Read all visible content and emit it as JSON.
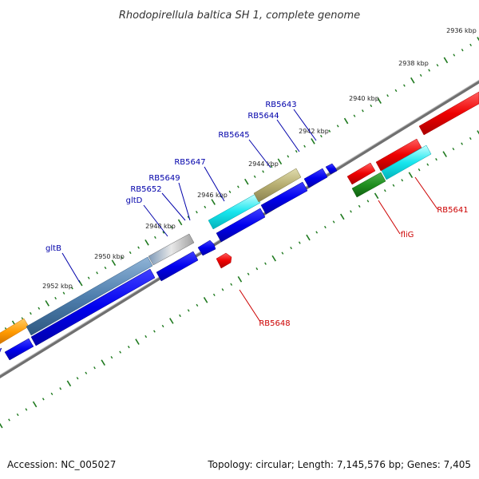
{
  "title": "Rhodopirellula baltica SH 1, complete genome",
  "footer": {
    "accession": "Accession: NC_005027",
    "summary": "Topology: circular; Length: 7,145,576 bp; Genes: 7,405"
  },
  "colors": {
    "backbone": "#808080",
    "tick": "#1f7a1f",
    "forward_label": "#0000aa",
    "reverse_label": "#cc0000"
  },
  "ruler": [
    {
      "label": "2936 kbp"
    },
    {
      "label": "2938 kbp"
    },
    {
      "label": "2940 kbp"
    },
    {
      "label": "2942 kbp"
    },
    {
      "label": "2944 kbp"
    },
    {
      "label": "2946 kbp"
    },
    {
      "label": "2948 kbp"
    },
    {
      "label": "2950 kbp"
    },
    {
      "label": "2952 kbp"
    }
  ],
  "gene_labels": [
    {
      "name": "RB5643",
      "strand": "forward"
    },
    {
      "name": "RB5644",
      "strand": "forward"
    },
    {
      "name": "RB5645",
      "strand": "forward"
    },
    {
      "name": "RB5647",
      "strand": "forward"
    },
    {
      "name": "RB5649",
      "strand": "forward"
    },
    {
      "name": "RB5652",
      "strand": "forward"
    },
    {
      "name": "gltD",
      "strand": "forward"
    },
    {
      "name": "gltB",
      "strand": "forward"
    },
    {
      "name": "RB5641",
      "strand": "reverse"
    },
    {
      "name": "fliG",
      "strand": "reverse"
    },
    {
      "name": "RB5648",
      "strand": "reverse"
    }
  ]
}
